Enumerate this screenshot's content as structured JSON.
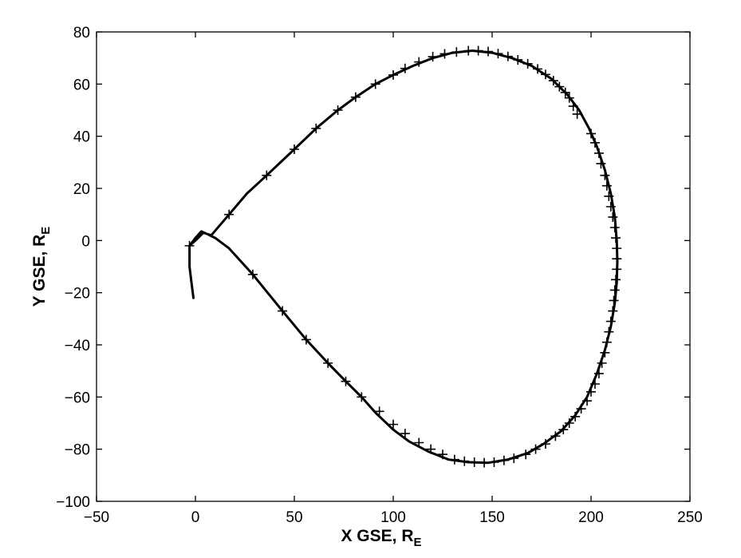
{
  "chart_data": {
    "type": "line",
    "title": "",
    "xlabel": "X GSE, R",
    "xlabel_sub": "E",
    "ylabel": "Y GSE, R",
    "ylabel_sub": "E",
    "xlim": [
      -50,
      250
    ],
    "ylim": [
      -100,
      80
    ],
    "xticks": [
      -50,
      0,
      50,
      100,
      150,
      200,
      250
    ],
    "yticks": [
      -100,
      -80,
      -60,
      -40,
      -20,
      0,
      20,
      40,
      60,
      80
    ],
    "grid": false,
    "legend": "none",
    "colors": {
      "line": "#000000",
      "axes": "#000000",
      "background": "#ffffff"
    },
    "series": [
      {
        "marker": "plus",
        "curve": [
          [
            -1,
            -22
          ],
          [
            -2,
            -16
          ],
          [
            -3,
            -10
          ],
          [
            -3,
            -5
          ],
          [
            -3,
            -2
          ],
          [
            0,
            0
          ],
          [
            4,
            3
          ],
          [
            8,
            2
          ],
          [
            17,
            10
          ],
          [
            26,
            18
          ],
          [
            36,
            25
          ],
          [
            50,
            35
          ],
          [
            61,
            43
          ],
          [
            72,
            50
          ],
          [
            81,
            55
          ],
          [
            91,
            60
          ],
          [
            100,
            63.5
          ],
          [
            110,
            67
          ],
          [
            120,
            70
          ],
          [
            130,
            72
          ],
          [
            140,
            72.8
          ],
          [
            150,
            72
          ],
          [
            160,
            70
          ],
          [
            170,
            67
          ],
          [
            180,
            62
          ],
          [
            188,
            56
          ],
          [
            194,
            50
          ],
          [
            199,
            43
          ],
          [
            203,
            36
          ],
          [
            207,
            27
          ],
          [
            210,
            18
          ],
          [
            212,
            9
          ],
          [
            213,
            0
          ],
          [
            213.3,
            -8
          ],
          [
            213,
            -16
          ],
          [
            212,
            -24
          ],
          [
            210,
            -33
          ],
          [
            207,
            -42
          ],
          [
            203,
            -51
          ],
          [
            198,
            -60
          ],
          [
            192,
            -67
          ],
          [
            185,
            -73
          ],
          [
            176,
            -78
          ],
          [
            168,
            -81.5
          ],
          [
            158,
            -84
          ],
          [
            148,
            -85.2
          ],
          [
            138,
            -85
          ],
          [
            128,
            -84
          ],
          [
            118,
            -81
          ],
          [
            108,
            -77
          ],
          [
            100,
            -72.5
          ],
          [
            91,
            -66
          ],
          [
            84,
            -60
          ],
          [
            76,
            -54
          ],
          [
            67,
            -47
          ],
          [
            56,
            -38
          ],
          [
            44,
            -27
          ],
          [
            29,
            -13
          ],
          [
            17,
            -3
          ],
          [
            10,
            1
          ],
          [
            6,
            2.5
          ],
          [
            3,
            3.5
          ],
          [
            0,
            1
          ],
          [
            -3,
            -2
          ]
        ],
        "markers": [
          [
            -3,
            -2
          ],
          [
            17,
            10
          ],
          [
            36,
            25
          ],
          [
            50,
            35
          ],
          [
            61,
            43
          ],
          [
            72,
            50
          ],
          [
            81,
            55
          ],
          [
            91,
            60
          ],
          [
            100,
            63.5
          ],
          [
            106,
            66
          ],
          [
            113,
            68.5
          ],
          [
            120,
            70.5
          ],
          [
            126,
            71.6
          ],
          [
            132,
            72.3
          ],
          [
            138,
            72.8
          ],
          [
            143,
            72.8
          ],
          [
            148,
            72.5
          ],
          [
            153,
            71.7
          ],
          [
            158,
            70.6
          ],
          [
            163,
            69.3
          ],
          [
            168,
            67.8
          ],
          [
            173,
            65.8
          ],
          [
            177,
            63.7
          ],
          [
            181,
            61.3
          ],
          [
            184,
            59
          ],
          [
            187,
            56.8
          ],
          [
            189,
            54.7
          ],
          [
            191,
            51.5
          ],
          [
            193,
            48.5
          ],
          [
            200,
            41
          ],
          [
            202,
            37.5
          ],
          [
            204,
            33.5
          ],
          [
            205,
            29.5
          ],
          [
            207,
            25
          ],
          [
            208,
            21
          ],
          [
            209,
            17
          ],
          [
            210,
            13
          ],
          [
            211,
            9
          ],
          [
            212,
            5
          ],
          [
            212.5,
            1
          ],
          [
            213,
            -3
          ],
          [
            213,
            -7
          ],
          [
            213,
            -11
          ],
          [
            212.5,
            -15
          ],
          [
            212,
            -19
          ],
          [
            211.5,
            -23
          ],
          [
            211,
            -27
          ],
          [
            210,
            -31
          ],
          [
            209,
            -35
          ],
          [
            208,
            -39
          ],
          [
            207,
            -43
          ],
          [
            205.5,
            -47
          ],
          [
            204,
            -51
          ],
          [
            202,
            -55
          ],
          [
            200,
            -58
          ],
          [
            198,
            -61.5
          ],
          [
            195,
            -64.5
          ],
          [
            192,
            -67.5
          ],
          [
            189,
            -70
          ],
          [
            186,
            -72.5
          ],
          [
            182,
            -75
          ],
          [
            177,
            -78
          ],
          [
            172,
            -80
          ],
          [
            167,
            -82
          ],
          [
            161,
            -83.5
          ],
          [
            156,
            -84.3
          ],
          [
            151,
            -85
          ],
          [
            146,
            -85.2
          ],
          [
            141,
            -85
          ],
          [
            136,
            -84.6
          ],
          [
            131,
            -84
          ],
          [
            125,
            -82
          ],
          [
            119,
            -80
          ],
          [
            113,
            -77.5
          ],
          [
            106,
            -74
          ],
          [
            100,
            -70.5
          ],
          [
            93,
            -65.5
          ],
          [
            84,
            -60
          ],
          [
            76,
            -54
          ],
          [
            67,
            -47
          ],
          [
            56,
            -38
          ],
          [
            44,
            -27
          ],
          [
            29,
            -13
          ]
        ]
      }
    ]
  }
}
